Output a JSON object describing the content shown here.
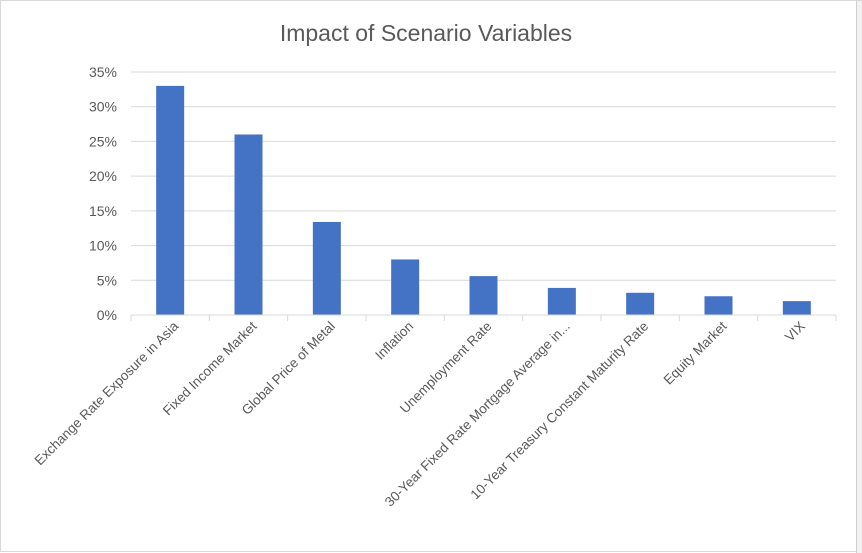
{
  "chart_data": {
    "type": "bar",
    "title": "Impact of Scenario Variables",
    "xlabel": "",
    "ylabel": "",
    "categories": [
      "Exchange Rate Exposure in Asia",
      "Fixed Income Market",
      "Global Price of Metal",
      "Inflation",
      "Unemployment Rate",
      "30-Year Fixed Rate Mortgage Average in...",
      "10-Year Treasury Constant Maturity Rate",
      "Equity Market",
      "VIX"
    ],
    "values": [
      0.33,
      0.26,
      0.134,
      0.08,
      0.056,
      0.039,
      0.032,
      0.027,
      0.02
    ],
    "ylim": [
      0,
      0.35
    ],
    "yticks": [
      "0%",
      "5%",
      "10%",
      "15%",
      "20%",
      "25%",
      "30%",
      "35%"
    ],
    "grid": true,
    "legend": "none",
    "bar_color": "#4472C4",
    "grid_color": "#d9d9d9",
    "text_color": "#595959"
  }
}
